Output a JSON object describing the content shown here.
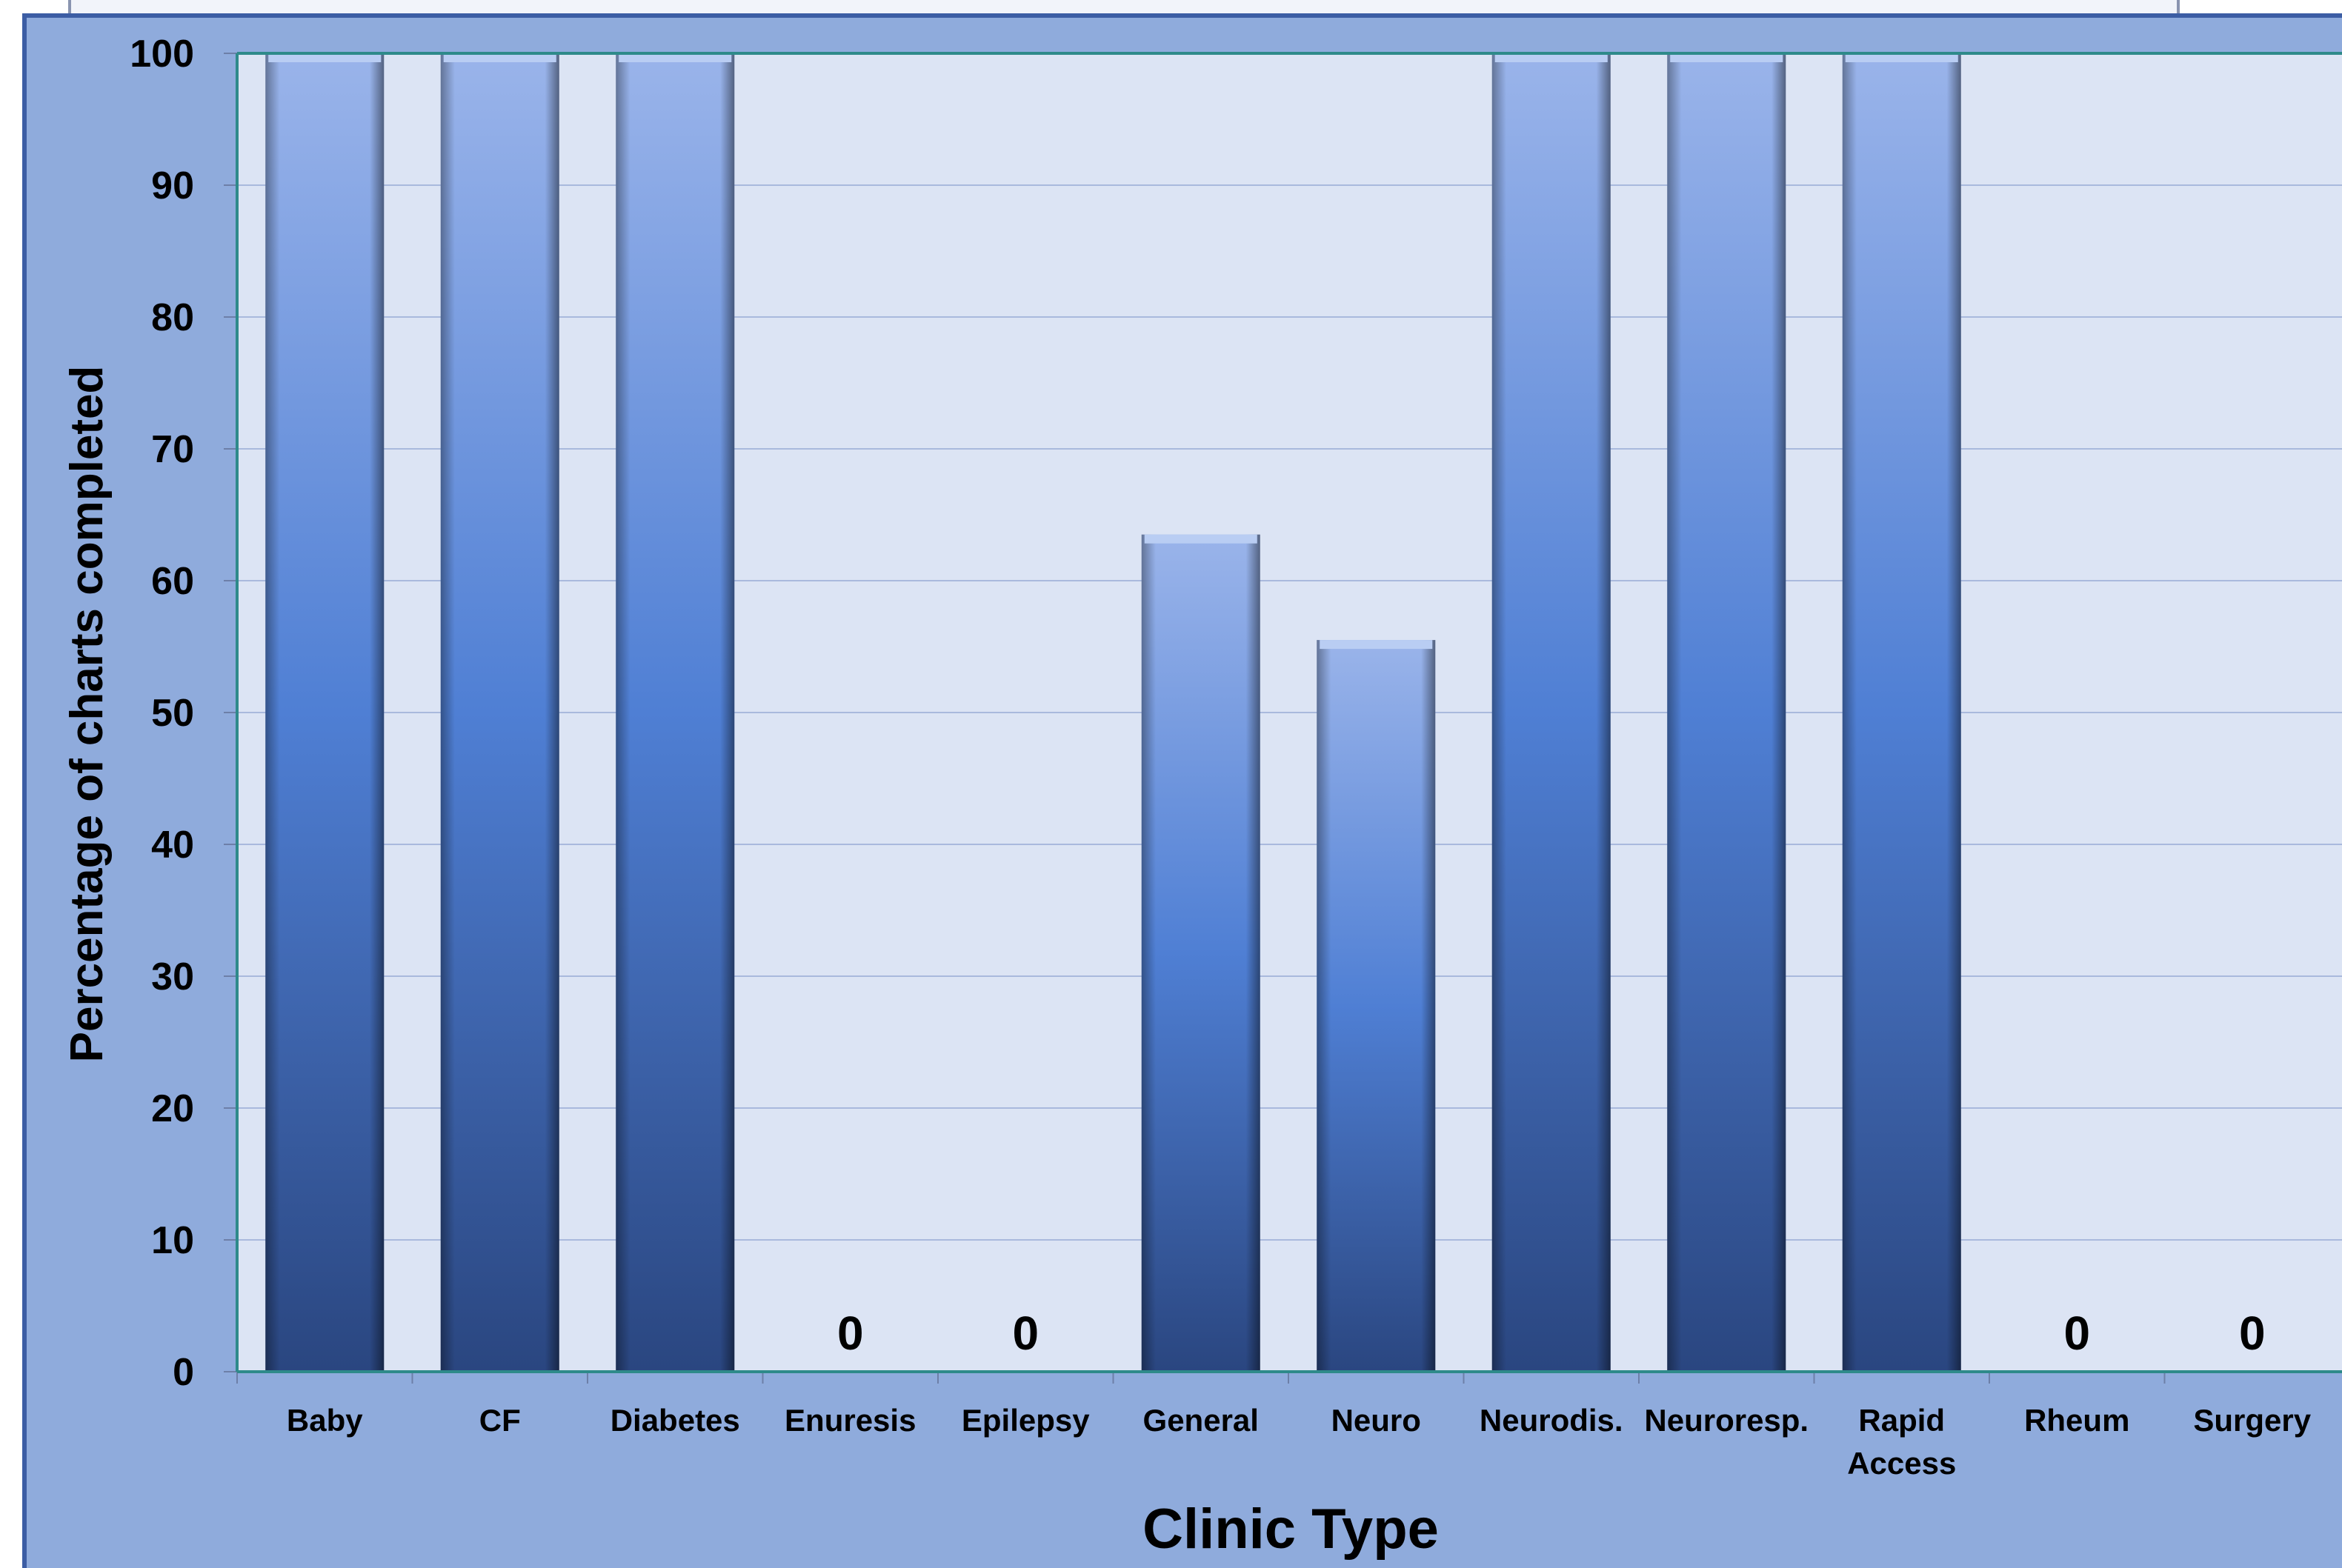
{
  "chart_data": {
    "type": "bar",
    "title": "",
    "xlabel": "Clinic Type",
    "ylabel": "Percentage of charts completed",
    "ylim": [
      0,
      100
    ],
    "yticks": [
      0,
      10,
      20,
      30,
      40,
      50,
      60,
      70,
      80,
      90,
      100
    ],
    "categories": [
      "Baby",
      "CF",
      "Diabetes",
      "Enuresis",
      "Epilepsy",
      "General",
      "Neuro",
      "Neurodis.",
      "Neuroresp.",
      "Rapid Access",
      "Rheum",
      "Surgery"
    ],
    "values": [
      100,
      100,
      100,
      0,
      0,
      63.5,
      55.5,
      100,
      100,
      100,
      0,
      0
    ],
    "data_labels": [
      "",
      "",
      "",
      "0",
      "0",
      "",
      "",
      "",
      "",
      "",
      "0",
      "0"
    ],
    "grid": true,
    "legend": "none",
    "colors": {
      "chart_background": "#8fabdc",
      "plot_background": "#dce4f4",
      "gridline": "#a9b9dd",
      "bar_top": "#9ab4ea",
      "bar_mid": "#4f7fd4",
      "bar_bottom": "#2a4680",
      "plot_border": "#2e8a8a"
    }
  }
}
